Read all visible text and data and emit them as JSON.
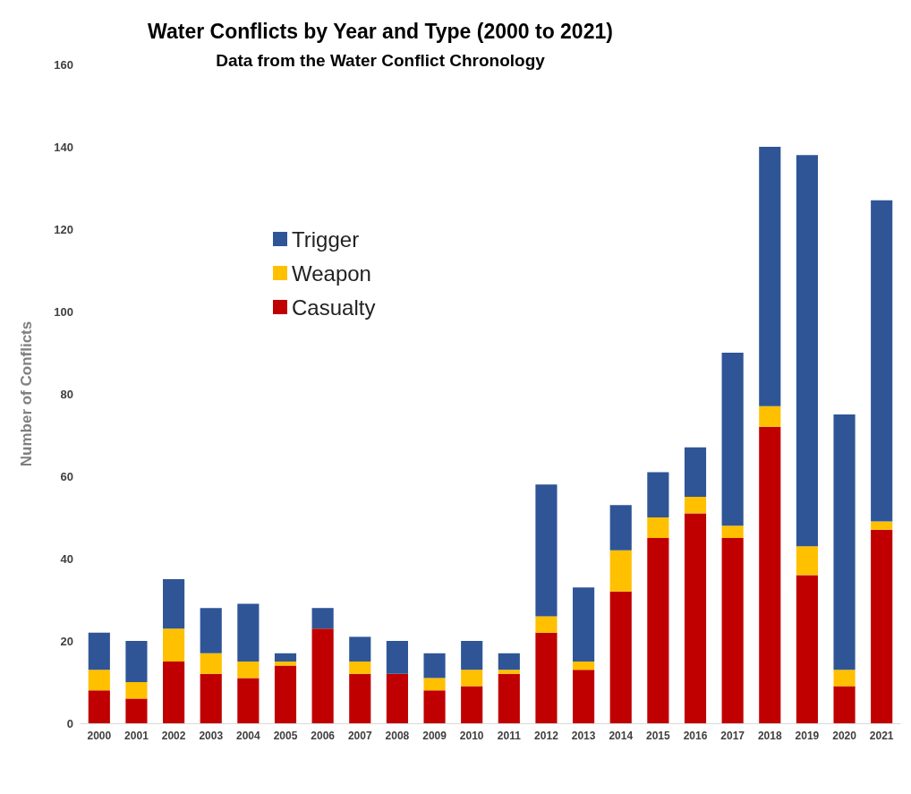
{
  "chart_data": {
    "type": "bar",
    "title": "Water Conflicts by Year and Type (2000 to 2021)",
    "subtitle": "Data from the Water Conflict Chronology",
    "ylabel": "Number of Conflicts",
    "categories": [
      "2000",
      "2001",
      "2002",
      "2003",
      "2004",
      "2005",
      "2006",
      "2007",
      "2008",
      "2009",
      "2010",
      "2011",
      "2012",
      "2013",
      "2014",
      "2015",
      "2016",
      "2017",
      "2018",
      "2019",
      "2020",
      "2021"
    ],
    "stacked": true,
    "ylim": [
      0,
      160
    ],
    "yticks": [
      0,
      20,
      40,
      60,
      80,
      100,
      120,
      140,
      160
    ],
    "grid": false,
    "legend": "top left",
    "series": [
      {
        "name": "Casualty",
        "color": "#c00000",
        "values": [
          8,
          6,
          15,
          12,
          11,
          14,
          23,
          12,
          12,
          8,
          9,
          12,
          22,
          13,
          32,
          45,
          51,
          45,
          72,
          36,
          9,
          47
        ]
      },
      {
        "name": "Weapon",
        "color": "#ffc000",
        "values": [
          5,
          4,
          8,
          5,
          4,
          1,
          0,
          3,
          0,
          3,
          4,
          1,
          4,
          2,
          10,
          5,
          4,
          3,
          5,
          7,
          4,
          2
        ]
      },
      {
        "name": "Trigger",
        "color": "#2f5597",
        "values": [
          9,
          10,
          12,
          11,
          14,
          2,
          5,
          6,
          8,
          6,
          7,
          4,
          32,
          18,
          11,
          11,
          12,
          42,
          63,
          95,
          62,
          78
        ]
      }
    ]
  }
}
